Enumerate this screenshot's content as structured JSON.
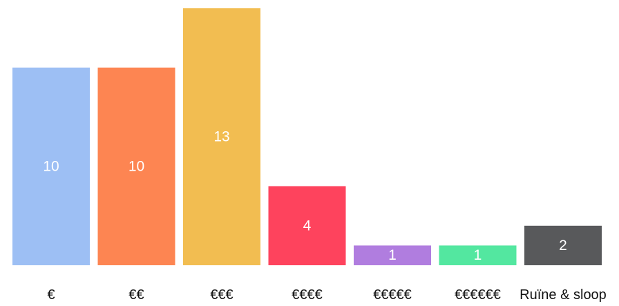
{
  "chart_data": {
    "type": "bar",
    "categories": [
      "€",
      "€€",
      "€€€",
      "€€€€",
      "€€€€€",
      "€€€€€€",
      "Ruïne & sloop"
    ],
    "values": [
      10,
      10,
      13,
      4,
      1,
      1,
      2
    ],
    "colors": [
      "#9dbff4",
      "#fd8552",
      "#f2bd51",
      "#fe435d",
      "#b07ddf",
      "#53e7a0",
      "#58595b"
    ],
    "ylim": [
      0,
      13
    ],
    "grid": false,
    "legend": "none"
  }
}
